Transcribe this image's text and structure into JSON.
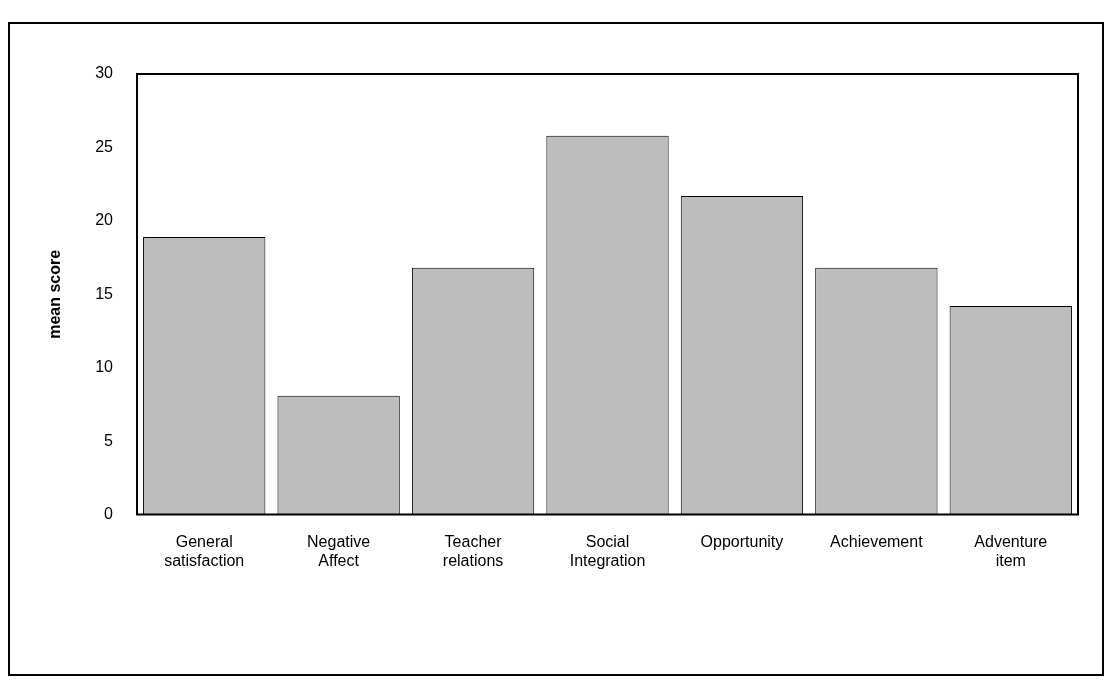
{
  "chart_data": {
    "type": "bar",
    "ylabel": "mean score",
    "categories": [
      "General satisfaction",
      "Negative Affect",
      "Teacher relations",
      "Social Integration",
      "Opportunity",
      "Achievement",
      "Adventure item"
    ],
    "values": [
      18.9,
      8.1,
      16.8,
      25.8,
      21.7,
      16.8,
      14.2
    ],
    "color": "#bdbdbd",
    "ylim": [
      0,
      30
    ],
    "yticks": [
      0,
      5,
      10,
      15,
      20,
      25,
      30
    ],
    "grid": false,
    "legend": false
  }
}
